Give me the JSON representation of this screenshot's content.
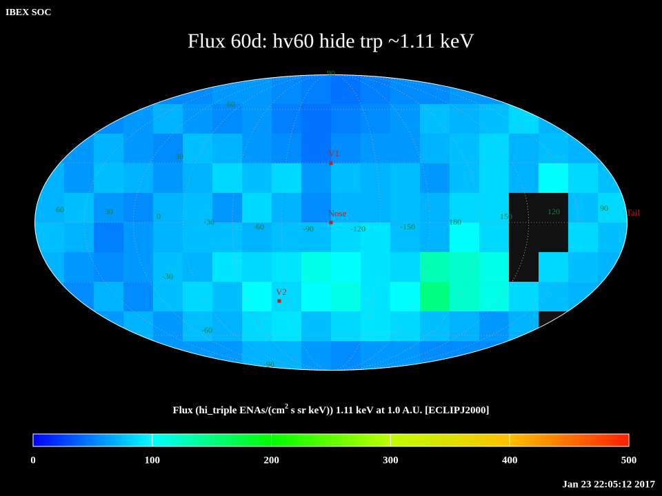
{
  "header": "IBEX SOC",
  "chart_data": {
    "type": "skymap",
    "title": "Flux   60d: hv60 hide trp ~1.11 keV",
    "values": [
      [
        55,
        55,
        55,
        55,
        55,
        55,
        60,
        60,
        55,
        50,
        45,
        50,
        55,
        55,
        60,
        60,
        60,
        60,
        60,
        60
      ],
      [
        55,
        55,
        55,
        60,
        70,
        60,
        55,
        60,
        50,
        45,
        50,
        55,
        60,
        75,
        70,
        75,
        85,
        70,
        60,
        60
      ],
      [
        60,
        60,
        70,
        60,
        55,
        75,
        70,
        60,
        55,
        45,
        55,
        60,
        60,
        70,
        75,
        85,
        70,
        75,
        70,
        60
      ],
      [
        70,
        60,
        75,
        70,
        60,
        70,
        85,
        75,
        85,
        60,
        75,
        70,
        75,
        60,
        75,
        85,
        70,
        100,
        85,
        75
      ],
      [
        70,
        75,
        60,
        55,
        70,
        75,
        60,
        85,
        70,
        55,
        70,
        70,
        75,
        70,
        85,
        85,
        null,
        null,
        75,
        85
      ],
      [
        75,
        70,
        50,
        60,
        70,
        75,
        75,
        70,
        75,
        75,
        85,
        90,
        75,
        70,
        100,
        85,
        null,
        null,
        85,
        75
      ],
      [
        70,
        60,
        55,
        60,
        75,
        70,
        90,
        85,
        90,
        110,
        100,
        90,
        85,
        130,
        120,
        110,
        null,
        85,
        75,
        70
      ],
      [
        60,
        55,
        70,
        55,
        75,
        85,
        75,
        100,
        85,
        100,
        110,
        90,
        100,
        150,
        120,
        110,
        85,
        75,
        70,
        60
      ],
      [
        55,
        55,
        60,
        70,
        60,
        75,
        70,
        85,
        90,
        75,
        85,
        90,
        85,
        75,
        70,
        60,
        70,
        null,
        60,
        55
      ],
      [
        50,
        50,
        55,
        55,
        60,
        60,
        60,
        70,
        70,
        60,
        55,
        60,
        60,
        55,
        55,
        55,
        55,
        55,
        55,
        55
      ]
    ],
    "clim": [
      0,
      500
    ],
    "cticks": [
      0,
      100,
      200,
      300,
      400,
      500
    ],
    "colorbar_label": [
      "Flux (hi_triple ENAs/(cm",
      "2",
      " s sr keV))  1.11 keV at 1.0 A.U. [ECLIPJ2000]"
    ],
    "lon_labels": [
      "60",
      "30",
      "0",
      "-30",
      "-60",
      "-90",
      "-120",
      "-150",
      "180",
      "150",
      "120",
      "90"
    ],
    "lat_labels": [
      "90",
      "60",
      "30",
      "-30",
      "-60",
      "-90"
    ],
    "markers": [
      "V1",
      "Nose",
      "V2",
      "Tail"
    ]
  },
  "timestamp": "Jan 23 22:05:12 2017"
}
